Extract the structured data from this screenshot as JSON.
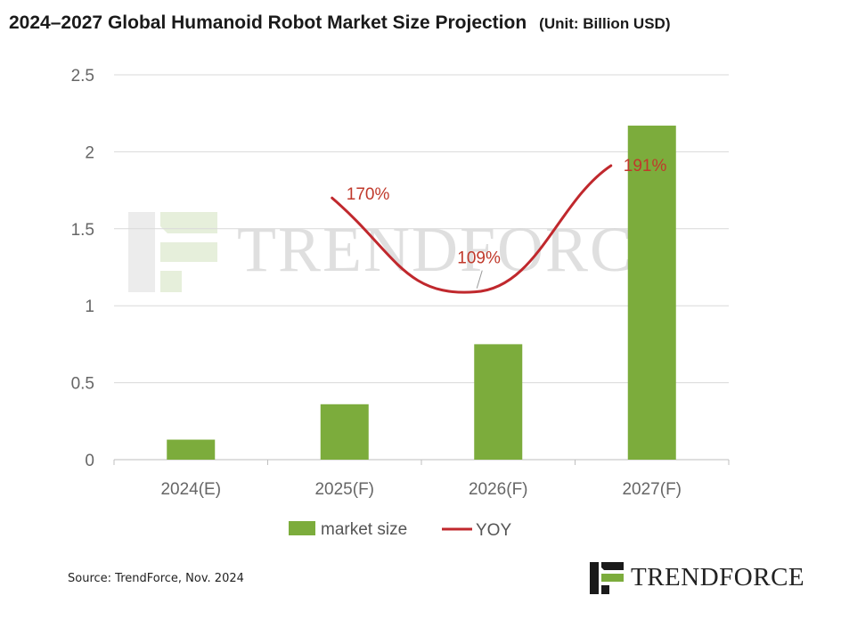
{
  "title": "2024–2027 Global Humanoid  Robot Market Size Projection",
  "unit": "(Unit: Billion USD)",
  "source": "Source: TrendForce, Nov. 2024",
  "brand": "TrendForce",
  "watermark": "TrendForce",
  "colors": {
    "bar": "#7cac3c",
    "line": "#c0282d",
    "grid": "#d9d9d9",
    "label": "#c0392b"
  },
  "chart_data": {
    "type": "bar",
    "categories": [
      "2024(E)",
      "2025(F)",
      "2026(F)",
      "2027(F)"
    ],
    "ylim": [
      0,
      2.5
    ],
    "y_ticks": [
      "0",
      "0.5",
      "1",
      "1.5",
      "2",
      "2.5"
    ],
    "grid": true,
    "legend_position": "bottom",
    "series": [
      {
        "name": "market size",
        "type": "bar",
        "values": [
          0.13,
          0.36,
          0.75,
          2.17
        ]
      },
      {
        "name": "YOY",
        "type": "line",
        "values": [
          null,
          1.7,
          1.09,
          1.91
        ],
        "labels": [
          "",
          "170%",
          "109%",
          "191%"
        ]
      }
    ]
  }
}
